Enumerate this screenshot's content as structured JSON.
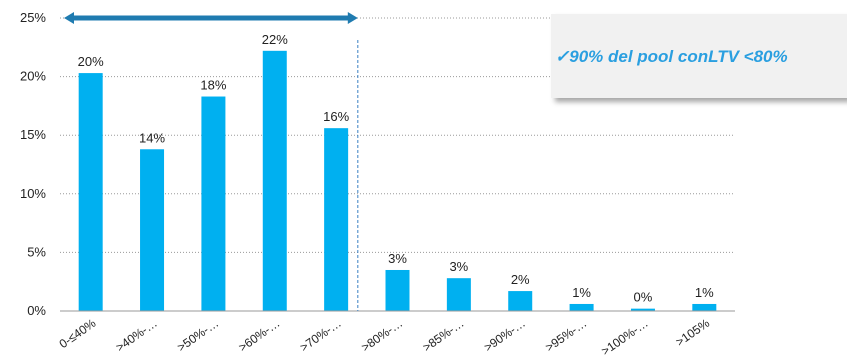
{
  "chart_data": {
    "type": "bar",
    "categories": [
      "0-≤40%",
      ">40%-…",
      ">50%-…",
      ">60%-…",
      ">70%-…",
      ">80%-…",
      ">85%-…",
      ">90%-…",
      ">95%-…",
      ">100%-…",
      ">105%"
    ],
    "values": [
      20.3,
      13.8,
      18.3,
      22.2,
      15.6,
      3.5,
      2.8,
      1.7,
      0.6,
      0.2,
      0.6
    ],
    "data_labels": [
      "20%",
      "14%",
      "18%",
      "22%",
      "16%",
      "3%",
      "3%",
      "2%",
      "1%",
      "0%",
      "1%"
    ],
    "ylim": [
      0,
      25
    ],
    "y_ticks": [
      0,
      5,
      10,
      15,
      20,
      25
    ],
    "y_tick_labels": [
      "0%",
      "5%",
      "10%",
      "15%",
      "20%",
      "25%"
    ],
    "grid": true,
    "colors": {
      "bar": "#00b0f0",
      "arrow": "#1f7bb0",
      "divider": "#3b7fc4",
      "callout_text": "#2a9fe0"
    },
    "annotation": {
      "arrow_span_categories": [
        0,
        4
      ],
      "divider_after_category": 4
    }
  },
  "callout": {
    "check_icon": "✓",
    "text": "90% del pool conLTV   <80%"
  }
}
